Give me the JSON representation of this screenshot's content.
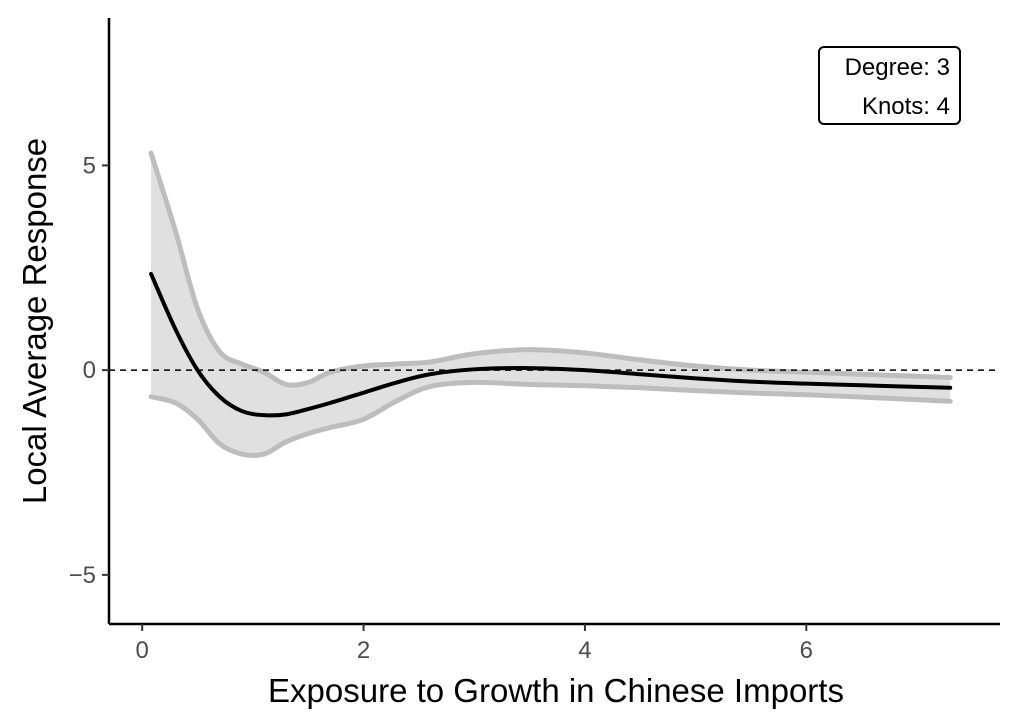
{
  "chart_data": {
    "type": "line",
    "title": "",
    "xlabel": "Exposure to Growth in Chinese Imports",
    "ylabel": "Local Average Response",
    "xlim": [
      -0.3,
      7.75
    ],
    "ylim": [
      -6.2,
      8.6
    ],
    "x_ticks": [
      0,
      2,
      4,
      6
    ],
    "x_tick_labels": [
      "0",
      "2",
      "4",
      "6"
    ],
    "y_ticks": [
      -5,
      0,
      5
    ],
    "y_tick_labels": [
      "−5",
      "0",
      "5"
    ],
    "reference_line": {
      "y": 0,
      "style": "dashed"
    },
    "annotation": {
      "degree_label": "Degree: 3",
      "knots_label": "Knots: 4"
    },
    "x": [
      0.08,
      0.3,
      0.5,
      0.7,
      0.9,
      1.1,
      1.3,
      1.5,
      1.7,
      2.0,
      2.3,
      2.6,
      3.0,
      3.5,
      4.0,
      4.5,
      5.0,
      5.5,
      6.0,
      6.5,
      7.0,
      7.3
    ],
    "series": [
      {
        "name": "estimate",
        "values": [
          2.35,
          1.0,
          0.0,
          -0.65,
          -1.0,
          -1.1,
          -1.08,
          -0.95,
          -0.8,
          -0.55,
          -0.3,
          -0.1,
          0.02,
          0.05,
          0.0,
          -0.1,
          -0.2,
          -0.28,
          -0.33,
          -0.37,
          -0.41,
          -0.43
        ]
      },
      {
        "name": "upper",
        "values": [
          5.3,
          3.4,
          1.5,
          0.45,
          0.15,
          -0.05,
          -0.35,
          -0.3,
          -0.05,
          0.1,
          0.15,
          0.2,
          0.4,
          0.5,
          0.42,
          0.25,
          0.1,
          0.0,
          -0.05,
          -0.1,
          -0.15,
          -0.18
        ]
      },
      {
        "name": "lower",
        "values": [
          -0.65,
          -0.8,
          -1.2,
          -1.8,
          -2.05,
          -2.05,
          -1.75,
          -1.55,
          -1.4,
          -1.2,
          -0.75,
          -0.4,
          -0.3,
          -0.35,
          -0.38,
          -0.43,
          -0.5,
          -0.56,
          -0.6,
          -0.66,
          -0.72,
          -0.76
        ]
      }
    ],
    "colors": {
      "line": "#000000",
      "band_fill": "#e0e0e0",
      "band_edge": "#bdbdbd",
      "axis": "#000000",
      "tick_text": "#4d4d4d"
    }
  }
}
